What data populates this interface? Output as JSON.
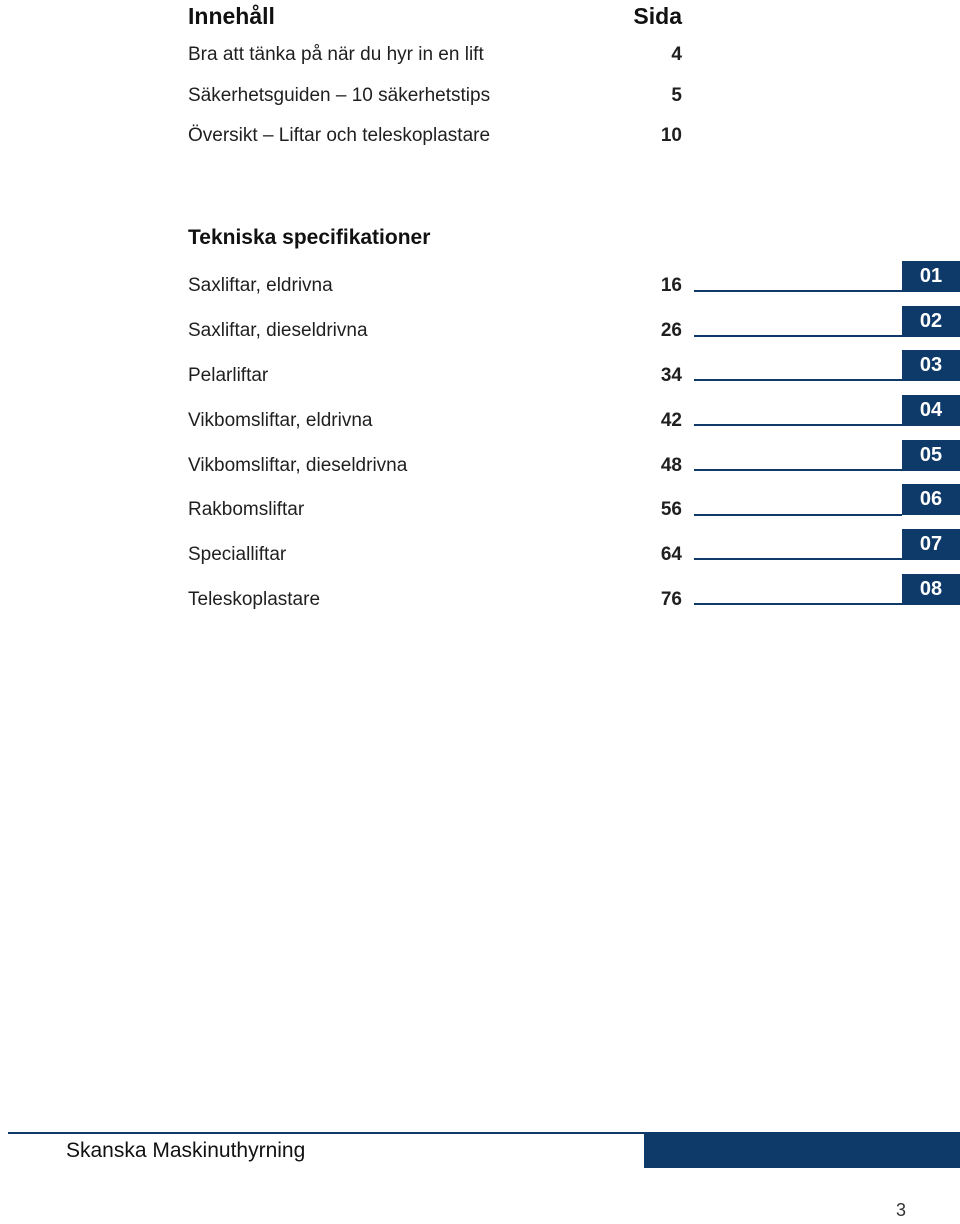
{
  "toc": {
    "title": "Innehåll",
    "page_header": "Sida",
    "intro_items": [
      {
        "label": "Bra att tänka på när du hyr in en lift",
        "page": "4"
      },
      {
        "label": "Säkerhetsguiden – 10 säkerhetstips",
        "page": "5"
      },
      {
        "label": "Översikt – Liftar och teleskoplastare",
        "page": "10"
      }
    ],
    "section_title": "Tekniska specifikationer",
    "spec_items": [
      {
        "label": "Saxliftar, eldrivna",
        "page": "16",
        "tab": "01"
      },
      {
        "label": "Saxliftar, dieseldrivna",
        "page": "26",
        "tab": "02"
      },
      {
        "label": "Pelarliftar",
        "page": "34",
        "tab": "03"
      },
      {
        "label": "Vikbomsliftar, eldrivna",
        "page": "42",
        "tab": "04"
      },
      {
        "label": "Vikbomsliftar, dieseldrivna",
        "page": "48",
        "tab": "05"
      },
      {
        "label": "Rakbomsliftar",
        "page": "56",
        "tab": "06"
      },
      {
        "label": "Specialliftar",
        "page": "64",
        "tab": "07"
      },
      {
        "label": "Teleskoplastare",
        "page": "76",
        "tab": "08"
      }
    ]
  },
  "footer": {
    "company": "Skanska Maskinuthyrning",
    "page_number": "3"
  },
  "colors": {
    "accent": "#0e3a6a"
  }
}
